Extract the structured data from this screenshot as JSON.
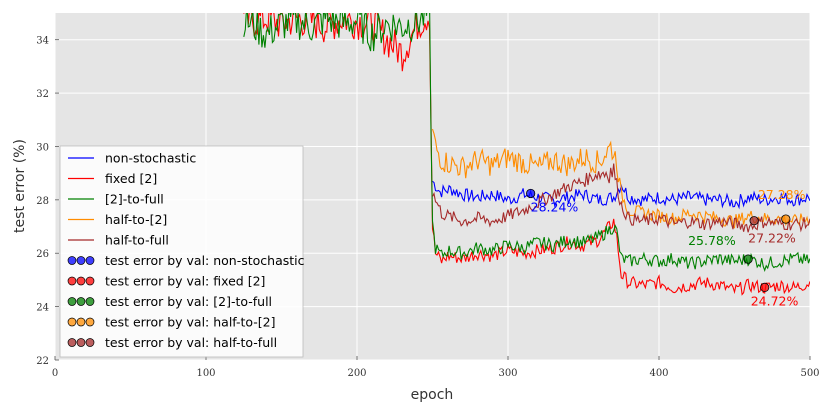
{
  "chart_data": {
    "type": "line",
    "xlabel": "epoch",
    "ylabel": "test error (%)",
    "xlim": [
      0,
      500
    ],
    "ylim": [
      22,
      35
    ],
    "xticks": [
      0,
      100,
      200,
      300,
      400,
      500
    ],
    "yticks": [
      22,
      24,
      26,
      28,
      30,
      32,
      34
    ],
    "grid": true,
    "legend_position": "lower-left",
    "series": [
      {
        "name": "non-stochastic",
        "color": "#0000ff",
        "x": [
          250,
          255,
          262,
          270,
          280,
          290,
          300,
          310,
          320,
          330,
          340,
          350,
          360,
          370,
          375,
          380,
          390,
          400,
          410,
          420,
          430,
          440,
          450,
          460,
          470,
          480,
          490,
          500
        ],
        "y": [
          28.7,
          28.3,
          28.4,
          28.2,
          28.1,
          28.2,
          28.0,
          28.2,
          28.1,
          28.0,
          28.1,
          28.2,
          28.0,
          28.1,
          28.6,
          28.1,
          28.0,
          28.1,
          28.0,
          28.1,
          28.0,
          28.0,
          27.9,
          28.1,
          28.0,
          28.1,
          28.0,
          28.1
        ]
      },
      {
        "name": "fixed [2]",
        "color": "#ff0000",
        "x": [
          125,
          130,
          140,
          150,
          160,
          170,
          180,
          190,
          200,
          210,
          220,
          230,
          240,
          248,
          250,
          252,
          256,
          260,
          270,
          280,
          290,
          300,
          310,
          320,
          330,
          340,
          350,
          360,
          370,
          372,
          375,
          380,
          390,
          400,
          410,
          420,
          430,
          440,
          450,
          460,
          470,
          480,
          490,
          500
        ],
        "y": [
          34.8,
          34.7,
          34.8,
          34.6,
          34.8,
          34.7,
          34.5,
          34.8,
          34.7,
          34.6,
          34.0,
          33.5,
          34.6,
          35.0,
          27.0,
          26.0,
          25.7,
          25.9,
          25.8,
          26.0,
          25.9,
          26.1,
          26.0,
          26.1,
          26.2,
          26.4,
          26.3,
          26.5,
          27.2,
          26.6,
          25.2,
          24.9,
          24.8,
          24.9,
          24.7,
          24.8,
          24.9,
          24.8,
          24.6,
          24.8,
          24.7,
          24.8,
          24.7,
          24.9
        ]
      },
      {
        "name": "[2]-to-full",
        "color": "#008000",
        "x": [
          125,
          130,
          140,
          150,
          160,
          170,
          180,
          190,
          200,
          210,
          220,
          230,
          240,
          248,
          250,
          252,
          256,
          260,
          270,
          280,
          290,
          300,
          310,
          320,
          330,
          340,
          350,
          360,
          370,
          372,
          375,
          380,
          390,
          400,
          410,
          420,
          430,
          440,
          450,
          460,
          470,
          480,
          490,
          500
        ],
        "y": [
          34.8,
          34.6,
          34.2,
          34.6,
          34.7,
          34.5,
          34.8,
          34.6,
          34.7,
          34.2,
          34.6,
          34.5,
          34.7,
          35.0,
          27.1,
          26.2,
          25.9,
          26.1,
          26.0,
          26.2,
          26.1,
          26.3,
          26.2,
          26.4,
          26.3,
          26.5,
          26.4,
          26.6,
          27.0,
          26.8,
          25.8,
          25.7,
          25.8,
          25.7,
          25.8,
          25.6,
          25.7,
          25.8,
          25.7,
          25.8,
          25.6,
          25.7,
          25.8,
          25.7
        ]
      },
      {
        "name": "half-to-[2]",
        "color": "#ff8c00",
        "x": [
          250,
          252,
          256,
          260,
          270,
          280,
          290,
          300,
          310,
          320,
          330,
          340,
          350,
          360,
          368,
          372,
          375,
          380,
          390,
          400,
          410,
          420,
          430,
          440,
          450,
          460,
          470,
          480,
          490,
          500
        ],
        "y": [
          30.6,
          30.0,
          29.5,
          29.4,
          29.2,
          29.5,
          29.3,
          29.6,
          29.4,
          29.2,
          29.5,
          29.3,
          29.6,
          29.4,
          30.0,
          29.5,
          28.2,
          27.6,
          27.5,
          27.4,
          27.3,
          27.5,
          27.4,
          27.3,
          27.2,
          27.4,
          27.3,
          27.3,
          27.2,
          27.3
        ]
      },
      {
        "name": "half-to-full",
        "color": "#a52a2a",
        "x": [
          250,
          252,
          256,
          260,
          270,
          280,
          290,
          300,
          310,
          320,
          330,
          340,
          350,
          360,
          370,
          375,
          380,
          390,
          400,
          410,
          420,
          430,
          440,
          450,
          460,
          470,
          480,
          490,
          500
        ],
        "y": [
          28.3,
          28.0,
          27.5,
          27.4,
          27.2,
          27.3,
          27.2,
          27.4,
          27.6,
          27.9,
          28.2,
          28.5,
          28.7,
          29.0,
          29.1,
          27.8,
          27.3,
          27.2,
          27.3,
          27.1,
          27.2,
          27.1,
          27.2,
          27.1,
          27.0,
          27.2,
          27.1,
          27.1,
          27.1
        ]
      }
    ],
    "markers": [
      {
        "series": "non-stochastic",
        "x": 315,
        "y": 28.24,
        "color": "#0000ff",
        "label": "28.24%"
      },
      {
        "series": "fixed [2]",
        "x": 470,
        "y": 24.72,
        "color": "#ff0000",
        "label": "24.72%"
      },
      {
        "series": "[2]-to-full",
        "x": 459,
        "y": 25.78,
        "color": "#008000",
        "label": "25.78%"
      },
      {
        "series": "half-to-[2]",
        "x": 484,
        "y": 27.28,
        "color": "#ff8c00",
        "label": "27.28%"
      },
      {
        "series": "half-to-full",
        "x": 463,
        "y": 27.22,
        "color": "#a52a2a",
        "label": "27.22%"
      }
    ],
    "legend": [
      {
        "kind": "line",
        "label": "non-stochastic",
        "color": "#0000ff"
      },
      {
        "kind": "line",
        "label": "fixed [2]",
        "color": "#ff0000"
      },
      {
        "kind": "line",
        "label": "[2]-to-full",
        "color": "#008000"
      },
      {
        "kind": "line",
        "label": "half-to-[2]",
        "color": "#ff8c00"
      },
      {
        "kind": "line",
        "label": "half-to-full",
        "color": "#a52a2a"
      },
      {
        "kind": "marker",
        "label": "test error by val: non-stochastic",
        "color": "#0000ff"
      },
      {
        "kind": "marker",
        "label": "test error by val: fixed [2]",
        "color": "#ff0000"
      },
      {
        "kind": "marker",
        "label": "test error by val: [2]-to-full",
        "color": "#008000"
      },
      {
        "kind": "marker",
        "label": "test error by val: half-to-[2]",
        "color": "#ff8c00"
      },
      {
        "kind": "marker",
        "label": "test error by val: half-to-full",
        "color": "#a52a2a"
      }
    ]
  }
}
